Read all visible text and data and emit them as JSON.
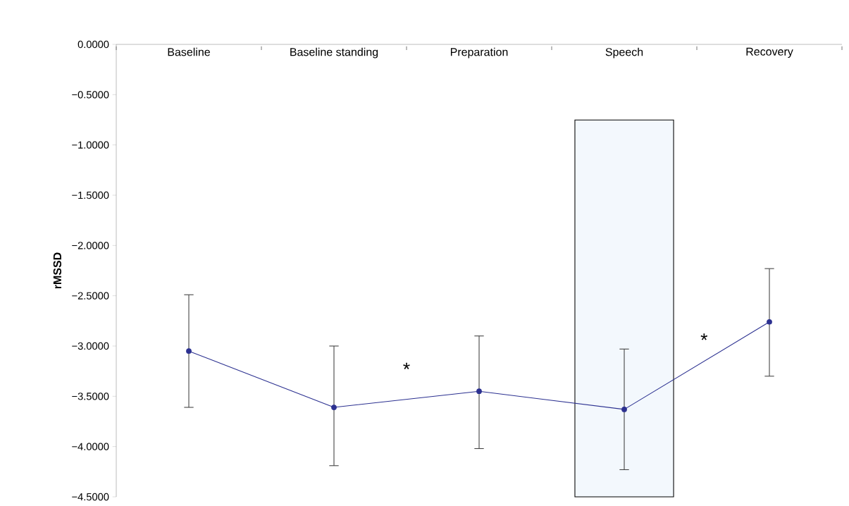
{
  "chart_data": {
    "type": "line",
    "ylabel": "rMSSD",
    "categories": [
      "Baseline",
      "Baseline standing",
      "Preparation",
      "Speech",
      "Recovery"
    ],
    "series": [
      {
        "color": "#2b3090",
        "values": [
          -3.05,
          -3.61,
          -3.45,
          -3.63,
          -2.76
        ],
        "errors": [
          [
            -3.61,
            -2.49
          ],
          [
            -4.19,
            -3.0
          ],
          [
            -4.02,
            -2.9
          ],
          [
            -4.23,
            -3.03
          ],
          [
            -3.3,
            -2.23
          ]
        ]
      }
    ],
    "ylim": [
      -4.5,
      0
    ],
    "yticks": [
      {
        "value": 0,
        "label": "0.0000"
      },
      {
        "value": -0.5,
        "label": "−0.5000"
      },
      {
        "value": -1,
        "label": "−1.0000"
      },
      {
        "value": -1.5,
        "label": "−1.5000"
      },
      {
        "value": -2,
        "label": "−2.0000"
      },
      {
        "value": -2.5,
        "label": "−2.5000"
      },
      {
        "value": -3,
        "label": "−3.0000"
      },
      {
        "value": -3.5,
        "label": "−3.5000"
      },
      {
        "value": -4,
        "label": "−4.0000"
      },
      {
        "value": -4.5,
        "label": "−4.5000"
      }
    ],
    "grid": false,
    "marker": "circle",
    "line_style": "solid",
    "bands": [
      {
        "axis": "x",
        "from": "Speech",
        "to": "Speech",
        "color": "#f3f8fd"
      }
    ],
    "annotations": [
      "*",
      "*"
    ]
  }
}
